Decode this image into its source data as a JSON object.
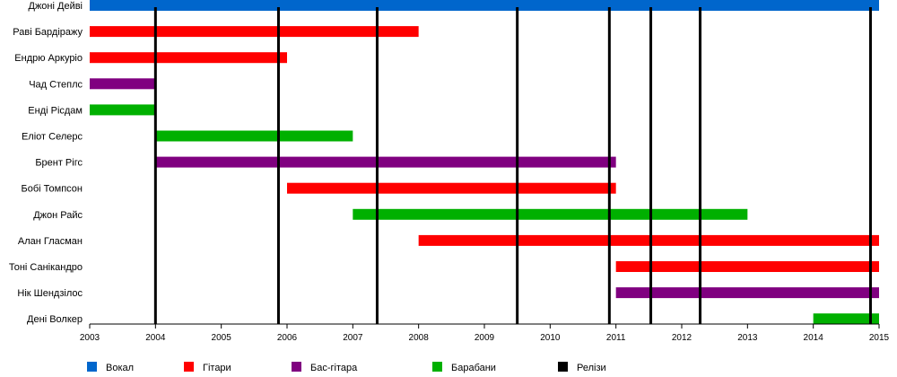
{
  "chart_data": {
    "type": "timeline",
    "x": {
      "min": 2003,
      "max": 2015,
      "ticks": [
        2003,
        2004,
        2005,
        2006,
        2007,
        2008,
        2009,
        2010,
        2011,
        2012,
        2013,
        2014,
        2015
      ]
    },
    "roles": [
      {
        "key": "vocal",
        "name": "Вокал",
        "color": "#0066cc"
      },
      {
        "key": "guitar",
        "name": "Гітари",
        "color": "#ff0000"
      },
      {
        "key": "bass",
        "name": "Бас-гітара",
        "color": "#800080"
      },
      {
        "key": "drums",
        "name": "Барабани",
        "color": "#00b000"
      },
      {
        "key": "releases",
        "name": "Релізи",
        "color": "#000000"
      }
    ],
    "members": [
      {
        "name": "Джоні Дейві",
        "role": "vocal",
        "start": 2003,
        "end": 2015
      },
      {
        "name": "Раві Бардіражу",
        "role": "guitar",
        "start": 2003,
        "end": 2008
      },
      {
        "name": "Ендрю Аркуріо",
        "role": "guitar",
        "start": 2003,
        "end": 2006
      },
      {
        "name": "Чад Степлс",
        "role": "bass",
        "start": 2003,
        "end": 2004
      },
      {
        "name": "Енді Рісдам",
        "role": "drums",
        "start": 2003,
        "end": 2004
      },
      {
        "name": "Еліот Селерс",
        "role": "drums",
        "start": 2004,
        "end": 2007
      },
      {
        "name": "Брент Рігс",
        "role": "bass",
        "start": 2004,
        "end": 2011
      },
      {
        "name": "Бобі Томпсон",
        "role": "guitar",
        "start": 2006,
        "end": 2011
      },
      {
        "name": "Джон Райс",
        "role": "drums",
        "start": 2007,
        "end": 2013
      },
      {
        "name": "Алан Гласман",
        "role": "guitar",
        "start": 2008,
        "end": 2015
      },
      {
        "name": "Тоні Санікандро",
        "role": "guitar",
        "start": 2011,
        "end": 2015
      },
      {
        "name": "Нік Шендзілос",
        "role": "bass",
        "start": 2011,
        "end": 2015
      },
      {
        "name": "Дені Волкер",
        "role": "drums",
        "start": 2014,
        "end": 2015
      }
    ],
    "releases": [
      2004.0,
      2005.87,
      2007.37,
      2009.5,
      2010.9,
      2011.53,
      2012.28,
      2014.87
    ]
  }
}
